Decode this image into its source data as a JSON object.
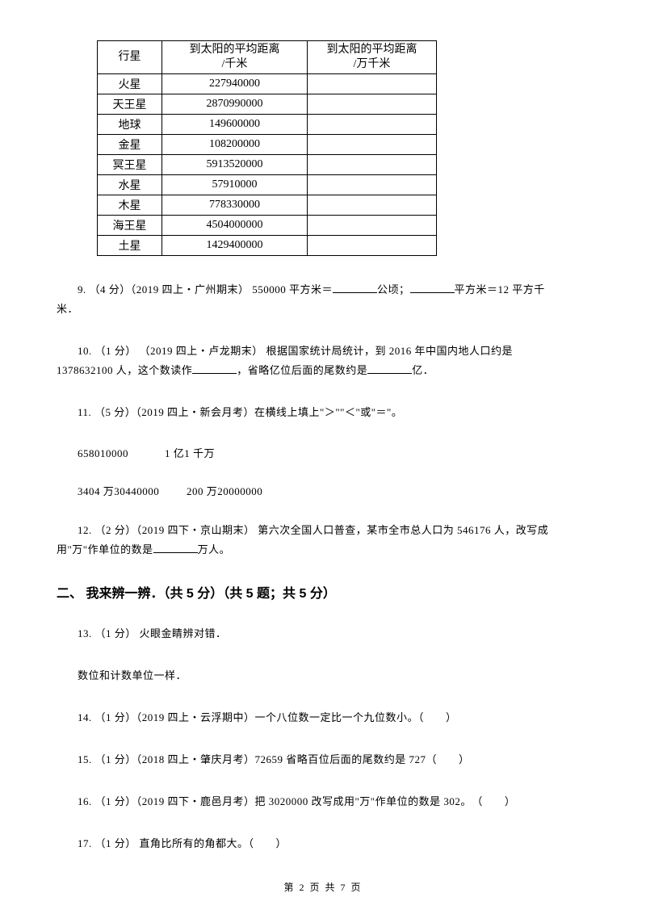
{
  "table": {
    "headers": [
      "行星",
      "到太阳的平均距离\n/千米",
      "到太阳的平均距离\n/万千米"
    ],
    "rows": [
      [
        "火星",
        "227940000",
        ""
      ],
      [
        "天王星",
        "2870990000",
        ""
      ],
      [
        "地球",
        "149600000",
        ""
      ],
      [
        "金星",
        "108200000",
        ""
      ],
      [
        "冥王星",
        "5913520000",
        ""
      ],
      [
        "水星",
        "57910000",
        ""
      ],
      [
        "木星",
        "778330000",
        ""
      ],
      [
        "海王星",
        "4504000000",
        ""
      ],
      [
        "土星",
        "1429400000",
        ""
      ]
    ]
  },
  "q9": {
    "prefix": "9. （4 分）（2019 四上・广州期末） 550000 平方米＝",
    "mid1": "公顷；",
    "suffix": "平方米＝12 平方千",
    "line2": "米．"
  },
  "q10": {
    "prefix": "10. （1 分） （2019 四上・卢龙期末） 根据国家统计局统计，到 2016 年中国内地人口约是",
    "line2a": "1378632100 人，这个数读作",
    "line2b": "，省略亿位后面的尾数约是",
    "line2c": "亿．"
  },
  "q11": {
    "line1": "11. （5 分）（2019 四上・新会月考）在横线上填上\"＞\"\"＜\"或\"＝\"。",
    "row1a": "6580",
    "row1b": "10000",
    "row1c": "1 亿",
    "row1d": "1 千万",
    "row2a": "3404 万",
    "row2b": "30440000",
    "row2c": "200 万",
    "row2d": "20000000"
  },
  "q12": {
    "line1": "12. （2 分）（2019 四下・京山期末） 第六次全国人口普查，某市全市总人口为 546176 人，改写成",
    "line2a": "用\"万\"作单位的数是",
    "line2b": "万人。"
  },
  "section2": "二、 我来辨一辨．（共 5 分）（共 5 题；共 5 分）",
  "q13": {
    "line1": "13. （1 分） 火眼金睛辨对错．",
    "line2": "数位和计数单位一样．"
  },
  "q14": "14. （1 分）（2019 四上・云浮期中）一个八位数一定比一个九位数小。（　　）",
  "q15": "15. （1 分）（2018 四上・肇庆月考）72659 省略百位后面的尾数约是 727（　　）",
  "q16": "16. （1 分）（2019 四下・鹿邑月考）把 3020000 改写成用\"万\"作单位的数是 302。　（　　）",
  "q17": "17. （1 分） 直角比所有的角都大。（　　）",
  "footer": "第 2 页 共 7 页"
}
